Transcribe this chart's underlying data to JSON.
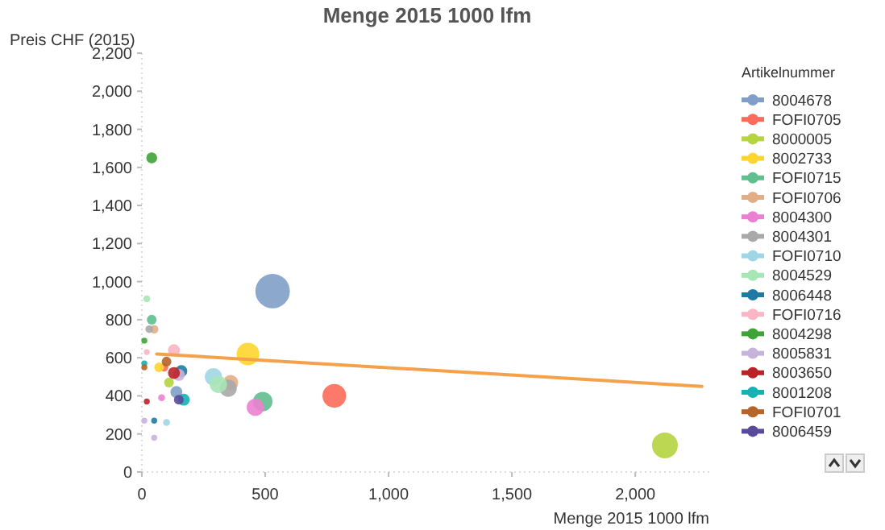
{
  "chart_data": {
    "type": "bubble",
    "title": "Menge 2015 1000 lfm",
    "xlabel": "Menge 2015 1000 lfm",
    "ylabel": "Preis CHF (2015)",
    "legend_title": "Artikelnummer",
    "legend": "right",
    "marker": "circle",
    "xlim": [
      0,
      2300
    ],
    "xticks": [
      0,
      500,
      {
        "value": 1000,
        "label": "1,000"
      },
      {
        "value": 1500,
        "label": "1,500"
      },
      {
        "value": 2000,
        "label": "2,000"
      }
    ],
    "ylim": [
      0,
      2200
    ],
    "yticks": [
      0,
      200,
      400,
      600,
      800,
      {
        "value": 1000,
        "label": "1,000"
      },
      {
        "value": 1200,
        "label": "1,200"
      },
      {
        "value": 1400,
        "label": "1,400"
      },
      {
        "value": 1600,
        "label": "1,600"
      },
      {
        "value": 1800,
        "label": "1,800"
      },
      {
        "value": 2000,
        "label": "2,000"
      },
      {
        "value": 2200,
        "label": "2,200"
      }
    ],
    "series": [
      {
        "name": "8004678",
        "color": "#7f9fc8",
        "x": [
          530,
          140
        ],
        "values": [
          950,
          420
        ],
        "sizes": [
          1,
          0.12
        ]
      },
      {
        "name": "FOFI0705",
        "color": "#fd6b5a",
        "x": [
          780,
          90
        ],
        "values": [
          400,
          550
        ],
        "sizes": [
          0.47,
          0.06
        ]
      },
      {
        "name": "8000005",
        "color": "#b5d43f",
        "x": [
          2120,
          110
        ],
        "values": [
          140,
          470
        ],
        "sizes": [
          0.56,
          0.08
        ]
      },
      {
        "name": "8002733",
        "color": "#fed52d",
        "x": [
          430,
          70
        ],
        "values": [
          620,
          550
        ],
        "sizes": [
          0.43,
          0.08
        ]
      },
      {
        "name": "FOFI0715",
        "color": "#5fbf8f",
        "x": [
          490,
          40
        ],
        "values": [
          370,
          800
        ],
        "sizes": [
          0.32,
          0.08
        ]
      },
      {
        "name": "FOFI0706",
        "color": "#e2ae86",
        "x": [
          360,
          50
        ],
        "values": [
          470,
          750
        ],
        "sizes": [
          0.19,
          0.06
        ]
      },
      {
        "name": "8004300",
        "color": "#ec7fd1",
        "x": [
          460,
          80
        ],
        "values": [
          340,
          390
        ],
        "sizes": [
          0.25,
          0.04
        ]
      },
      {
        "name": "8004301",
        "color": "#a9a9a9",
        "x": [
          350,
          30
        ],
        "values": [
          440,
          750
        ],
        "sizes": [
          0.25,
          0.05
        ]
      },
      {
        "name": "FOFI0710",
        "color": "#9fd6e6",
        "x": [
          290,
          100
        ],
        "values": [
          500,
          260
        ],
        "sizes": [
          0.25,
          0.04
        ]
      },
      {
        "name": "8004529",
        "color": "#a7e6b5",
        "x": [
          310,
          20
        ],
        "values": [
          460,
          910
        ],
        "sizes": [
          0.25,
          0.04
        ]
      },
      {
        "name": "8006448",
        "color": "#1f7aa3",
        "x": [
          160,
          50
        ],
        "values": [
          530,
          270
        ],
        "sizes": [
          0.12,
          0.03
        ]
      },
      {
        "name": "FOFI0716",
        "color": "#fbb5c4",
        "x": [
          130,
          20
        ],
        "values": [
          640,
          630
        ],
        "sizes": [
          0.12,
          0.03
        ]
      },
      {
        "name": "8004298",
        "color": "#3fa338",
        "x": [
          40,
          10
        ],
        "values": [
          1650,
          690
        ],
        "sizes": [
          0.1,
          0.03
        ]
      },
      {
        "name": "8005831",
        "color": "#c6b3dc",
        "x": [
          150,
          50,
          10
        ],
        "values": [
          510,
          180,
          270
        ],
        "sizes": [
          0.12,
          0.03,
          0.03
        ]
      },
      {
        "name": "8003650",
        "color": "#bb2228",
        "x": [
          130,
          20
        ],
        "values": [
          520,
          370
        ],
        "sizes": [
          0.12,
          0.03
        ]
      },
      {
        "name": "8001208",
        "color": "#14b2b2",
        "x": [
          170,
          10
        ],
        "values": [
          380,
          570
        ],
        "sizes": [
          0.12,
          0.03
        ]
      },
      {
        "name": "FOFI0701",
        "color": "#b5642a",
        "x": [
          100,
          10
        ],
        "values": [
          580,
          550
        ],
        "sizes": [
          0.08,
          0.03
        ]
      },
      {
        "name": "8006459",
        "color": "#5a4a9c",
        "x": [
          150
        ],
        "values": [
          380
        ],
        "sizes": [
          0.08
        ]
      },
      {
        "type": "line",
        "marker": "none",
        "color": "#f5a04a",
        "x": [
          60,
          2270
        ],
        "values": [
          620,
          450
        ]
      }
    ]
  }
}
